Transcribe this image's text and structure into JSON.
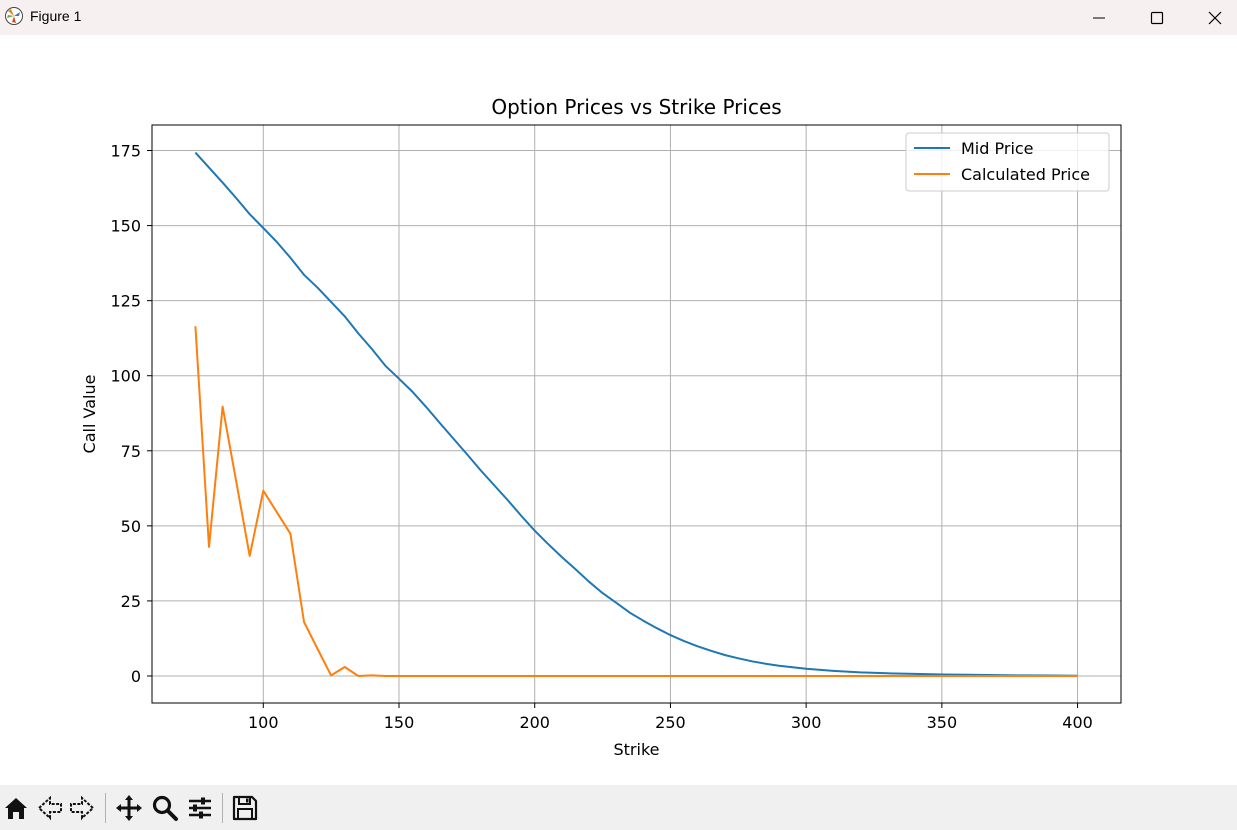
{
  "window": {
    "title": "Figure 1",
    "icons": [
      "matplotlib-app-icon",
      "minimize-icon",
      "maximize-icon",
      "close-icon"
    ]
  },
  "toolbar": {
    "buttons": [
      "home-icon",
      "back-icon",
      "forward-icon",
      "pan-icon",
      "zoom-icon",
      "configure-subplots-icon",
      "save-icon"
    ]
  },
  "chart_data": {
    "type": "line",
    "title": "Option Prices vs Strike Prices",
    "xlabel": "Strike",
    "ylabel": "Call Value",
    "xlim": [
      59,
      416
    ],
    "ylim": [
      -9,
      183.5
    ],
    "xticks": [
      100,
      150,
      200,
      250,
      300,
      350,
      400
    ],
    "yticks": [
      0,
      25,
      50,
      75,
      100,
      125,
      150,
      175
    ],
    "grid": true,
    "legend_position": "top-right",
    "series": [
      {
        "name": "Mid Price",
        "color": "#1f77b4",
        "x": [
          75,
          80,
          85,
          90,
          95,
          100,
          105,
          110,
          115,
          120,
          125,
          130,
          135,
          140,
          145,
          150,
          155,
          160,
          165,
          170,
          175,
          180,
          185,
          190,
          195,
          200,
          205,
          210,
          215,
          220,
          225,
          230,
          235,
          240,
          245,
          250,
          255,
          260,
          265,
          270,
          275,
          280,
          285,
          290,
          295,
          300,
          310,
          320,
          330,
          340,
          350,
          360,
          370,
          380,
          390,
          400
        ],
        "y": [
          174.3,
          169.3,
          164.3,
          159.2,
          153.8,
          149.2,
          144.5,
          139.3,
          133.6,
          129.3,
          124.6,
          119.8,
          114.1,
          108.9,
          103.3,
          99.0,
          94.6,
          89.6,
          84.3,
          79.1,
          73.9,
          68.6,
          63.6,
          58.6,
          53.4,
          48.4,
          43.9,
          39.6,
          35.6,
          31.4,
          27.6,
          24.4,
          21.1,
          18.4,
          15.9,
          13.6,
          11.6,
          9.9,
          8.4,
          7.0,
          5.9,
          4.9,
          4.1,
          3.4,
          2.9,
          2.4,
          1.7,
          1.2,
          0.9,
          0.7,
          0.5,
          0.4,
          0.3,
          0.2,
          0.15,
          0.1
        ]
      },
      {
        "name": "Calculated Price",
        "color": "#ff7f0e",
        "x": [
          75,
          80,
          85,
          90,
          95,
          100,
          105,
          110,
          115,
          120,
          125,
          130,
          135,
          140,
          145,
          150,
          200,
          250,
          300,
          350,
          400
        ],
        "y": [
          116.5,
          43,
          89.7,
          65,
          40,
          61.7,
          54.5,
          47.4,
          18,
          9,
          0.2,
          3,
          0,
          0.2,
          0,
          0,
          0,
          0,
          0,
          0,
          0
        ]
      }
    ]
  }
}
